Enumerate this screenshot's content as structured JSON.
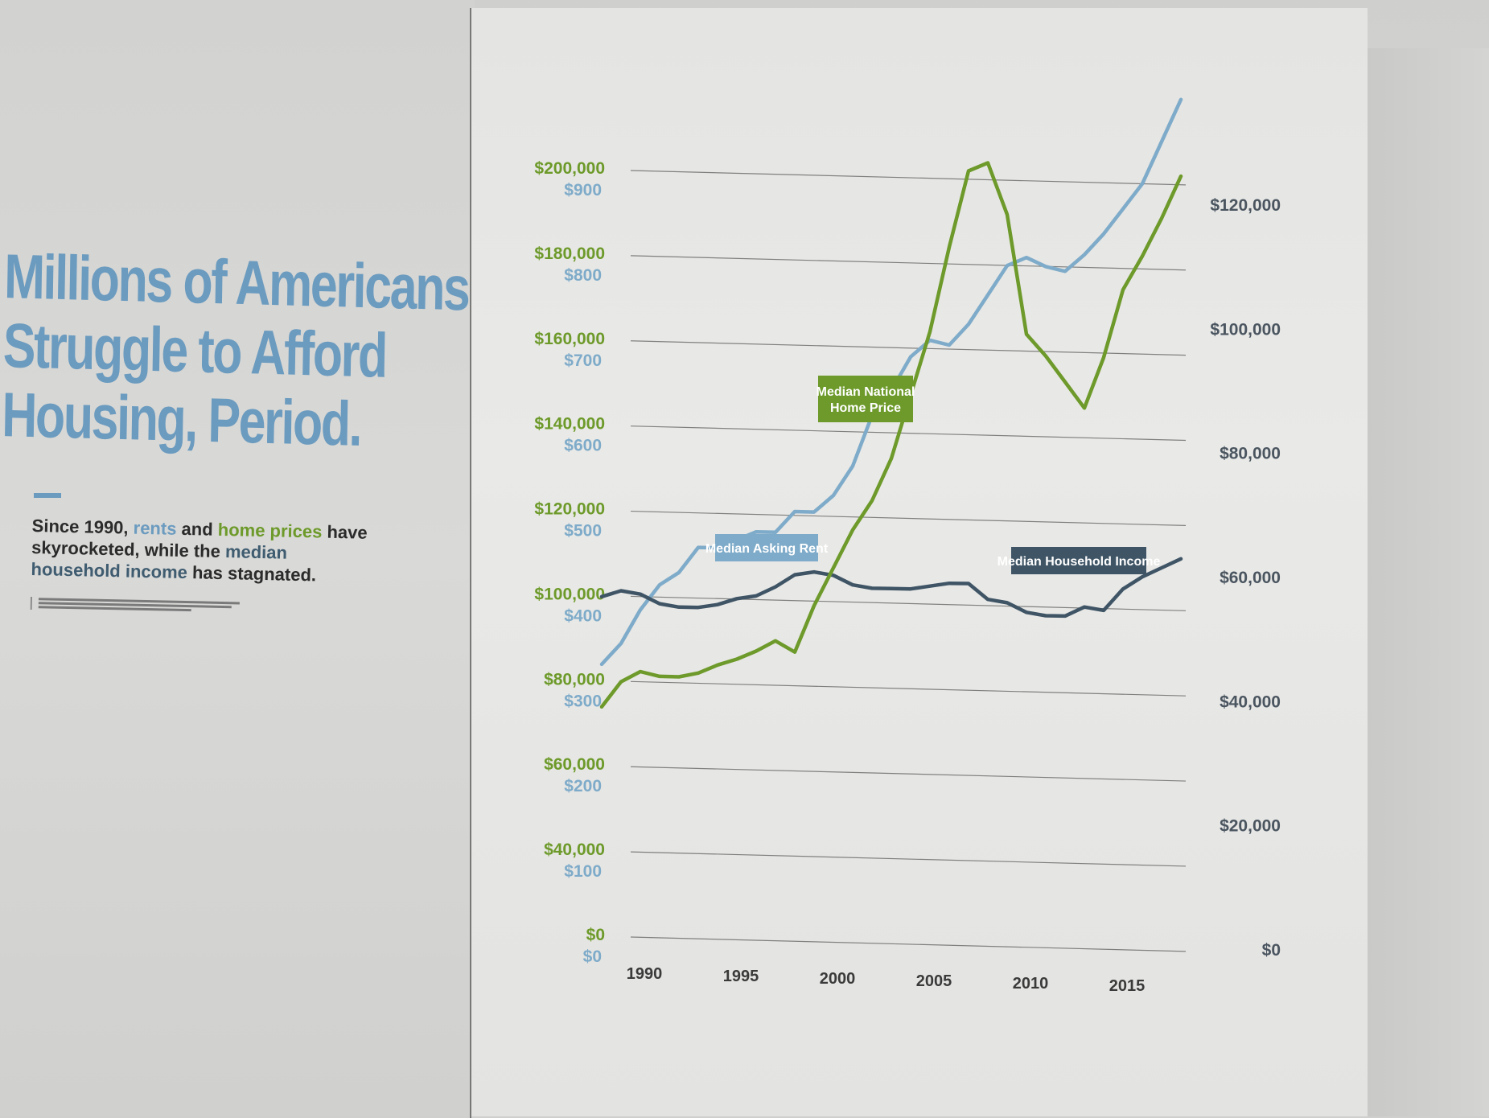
{
  "poster": {
    "headline_lines": [
      "Millions of Americans",
      "Struggle to Afford",
      "Housing, Period."
    ],
    "subtitle": {
      "part1": "Since 1990, ",
      "rents": "rents",
      "part2": " and ",
      "home_prices": "home prices",
      "part3": " have skyrocketed, while the ",
      "median_household": "median household income",
      "part4": " has stagnated."
    }
  },
  "colors": {
    "home_price": "#6d9a2a",
    "rent": "#7eabc9",
    "income": "#3f5566",
    "headline": "#6b9bbf"
  },
  "chart_data": {
    "type": "line",
    "x_ticks": [
      "1990",
      "1995",
      "2000",
      "2005",
      "2010",
      "2015"
    ],
    "xlim": [
      1988.5,
      2018
    ],
    "left_axis_home_price_ticks": [
      "$200,000",
      "$180,000",
      "$160,000",
      "$140,000",
      "$120,000",
      "$100,000",
      "$80,000",
      "$60,000",
      "$40,000",
      "$0"
    ],
    "left_axis_rent_ticks": [
      "$900",
      "$800",
      "$700",
      "$600",
      "$500",
      "$400",
      "$300",
      "$200",
      "$100",
      "$0"
    ],
    "right_axis_income_ticks": [
      "$120,000",
      "$100,000",
      "$80,000",
      "$60,000",
      "$40,000",
      "$20,000",
      "$0"
    ],
    "ylim_home_price": [
      20000,
      200000
    ],
    "ylim_rent": [
      0,
      900
    ],
    "ylim_income": [
      0,
      120000
    ],
    "grid": "horizontal",
    "series": [
      {
        "name": "Median National Home Price",
        "axis": "home_price",
        "x": [
          1988,
          1989,
          1990,
          1991,
          1992,
          1993,
          1994,
          1995,
          1996,
          1997,
          1998,
          1999,
          2000,
          2001,
          2002,
          2003,
          2004,
          2005,
          2006,
          2007,
          2008,
          2009,
          2010,
          2011,
          2012,
          2013,
          2014,
          2015,
          2016,
          2017,
          2018
        ],
        "values": [
          74000,
          80000,
          82500,
          81500,
          81500,
          82500,
          84500,
          86000,
          88000,
          90500,
          88000,
          99000,
          108000,
          117000,
          124000,
          134000,
          149000,
          164000,
          184000,
          202000,
          204000,
          192000,
          164000,
          159000,
          153000,
          147000,
          159000,
          175000,
          183000,
          192000,
          202000
        ]
      },
      {
        "name": "Median Asking Rent",
        "axis": "rent",
        "x": [
          1988,
          1989,
          1990,
          1991,
          1992,
          1993,
          1994,
          1995,
          1996,
          1997,
          1998,
          1999,
          2000,
          2001,
          2002,
          2003,
          2004,
          2005,
          2006,
          2007,
          2008,
          2009,
          2010,
          2011,
          2012,
          2013,
          2014,
          2015,
          2016,
          2017,
          2018
        ],
        "values": [
          320,
          345,
          385,
          415,
          430,
          460,
          460,
          470,
          480,
          480,
          505,
          505,
          525,
          560,
          620,
          650,
          690,
          710,
          705,
          730,
          765,
          800,
          810,
          800,
          795,
          815,
          840,
          870,
          900,
          950,
          1000
        ]
      },
      {
        "name": "Median Household Income",
        "axis": "income",
        "x": [
          1988,
          1989,
          1990,
          1991,
          1992,
          1993,
          1994,
          1995,
          1996,
          1997,
          1998,
          1999,
          2000,
          2001,
          2002,
          2003,
          2004,
          2005,
          2006,
          2007,
          2008,
          2009,
          2010,
          2011,
          2012,
          2013,
          2014,
          2015,
          2016,
          2017,
          2018
        ],
        "values": [
          56500,
          57500,
          57000,
          55500,
          55000,
          55000,
          55500,
          56500,
          57000,
          58500,
          60500,
          61000,
          60500,
          59000,
          58500,
          58500,
          58500,
          59000,
          59500,
          59500,
          57000,
          56500,
          55000,
          54500,
          54500,
          56000,
          55500,
          59000,
          61000,
          62500,
          64000
        ]
      }
    ]
  }
}
